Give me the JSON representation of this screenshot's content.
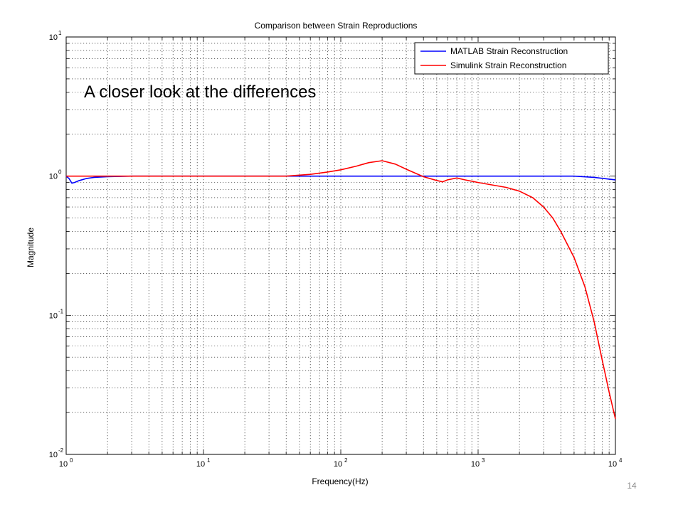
{
  "slide_number": "14",
  "chart_data": {
    "type": "line",
    "title": "Comparison between Strain Reproductions",
    "xlabel": "Frequency(Hz)",
    "ylabel": "Magnitude",
    "xscale": "log",
    "yscale": "log",
    "xlim": [
      1,
      10000
    ],
    "ylim": [
      0.01,
      10
    ],
    "grid": true,
    "legend_position": "top-right",
    "x_ticks": [
      {
        "base": "10",
        "exp": "0"
      },
      {
        "base": "10",
        "exp": "1"
      },
      {
        "base": "10",
        "exp": "2"
      },
      {
        "base": "10",
        "exp": "3"
      },
      {
        "base": "10",
        "exp": "4"
      }
    ],
    "y_ticks": [
      {
        "base": "10",
        "exp": "-2"
      },
      {
        "base": "10",
        "exp": "-1"
      },
      {
        "base": "10",
        "exp": "0"
      },
      {
        "base": "10",
        "exp": "1"
      }
    ],
    "annotation": "A closer look at the differences",
    "series": [
      {
        "name": "MATLAB Strain Reconstruction",
        "color": "#0000ff",
        "x": [
          1,
          1.05,
          1.1,
          1.15,
          1.25,
          1.4,
          1.6,
          2,
          3,
          5,
          10,
          20,
          40,
          60,
          100,
          200,
          400,
          700,
          1000,
          2000,
          3000,
          5000,
          7000,
          10000
        ],
        "y": [
          1.0,
          0.96,
          0.89,
          0.9,
          0.93,
          0.96,
          0.98,
          0.99,
          1.0,
          1.0,
          1.0,
          1.0,
          1.0,
          1.0,
          1.0,
          1.0,
          1.0,
          1.0,
          1.0,
          1.0,
          1.0,
          1.0,
          0.98,
          0.94
        ]
      },
      {
        "name": "Simulink Strain Reconstruction",
        "color": "#ff0000",
        "x": [
          1,
          2,
          5,
          10,
          20,
          40,
          60,
          80,
          100,
          130,
          160,
          200,
          250,
          300,
          400,
          500,
          550,
          600,
          700,
          800,
          1000,
          1300,
          1600,
          2000,
          2500,
          3000,
          3500,
          4000,
          5000,
          6000,
          7000,
          8000,
          9000,
          10000
        ],
        "y": [
          1.0,
          1.0,
          1.0,
          1.0,
          1.0,
          1.0,
          1.03,
          1.07,
          1.11,
          1.18,
          1.25,
          1.29,
          1.22,
          1.12,
          0.99,
          0.93,
          0.91,
          0.94,
          0.97,
          0.94,
          0.9,
          0.86,
          0.83,
          0.78,
          0.7,
          0.6,
          0.5,
          0.4,
          0.26,
          0.16,
          0.09,
          0.048,
          0.028,
          0.018
        ]
      }
    ]
  }
}
